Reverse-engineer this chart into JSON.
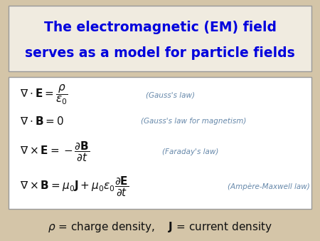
{
  "bg_color": "#d4c5a8",
  "title_box_bg": "#f0ebe0",
  "title_box_edge": "#999999",
  "title_text_color": "#0000dd",
  "title_line1": "The electromagnetic (EM) field",
  "title_line2": "serves as a model for particle fields",
  "eq_box_bg": "#ffffff",
  "eq_box_edge": "#999999",
  "eq_color": "#111111",
  "law_color": "#6688aa",
  "eq1_main": "$\\nabla \\cdot \\mathbf{E} = \\dfrac{\\rho}{\\varepsilon_0}$",
  "eq1_law": "(Gauss's law)",
  "eq2_main": "$\\nabla \\cdot \\mathbf{B} = 0$",
  "eq2_law": "(Gauss's law for magnetism)",
  "eq3_main": "$\\nabla \\times \\mathbf{E} = -\\dfrac{\\partial \\mathbf{B}}{\\partial t}$",
  "eq3_law": "(Faraday's law)",
  "eq4_main": "$\\nabla \\times \\mathbf{B} = \\mu_0 \\mathbf{J} + \\mu_0 \\varepsilon_0 \\dfrac{\\partial \\mathbf{E}}{\\partial t}$",
  "eq4_law": "(Ampère-Maxwell law)",
  "footer_text": "$\\rho$ = charge density,    $\\mathbf{J}$ = current density",
  "footer_color": "#111111",
  "title_fontsize": 13.5,
  "eq_fontsize": 11,
  "law_fontsize": 7.5,
  "footer_fontsize": 11
}
